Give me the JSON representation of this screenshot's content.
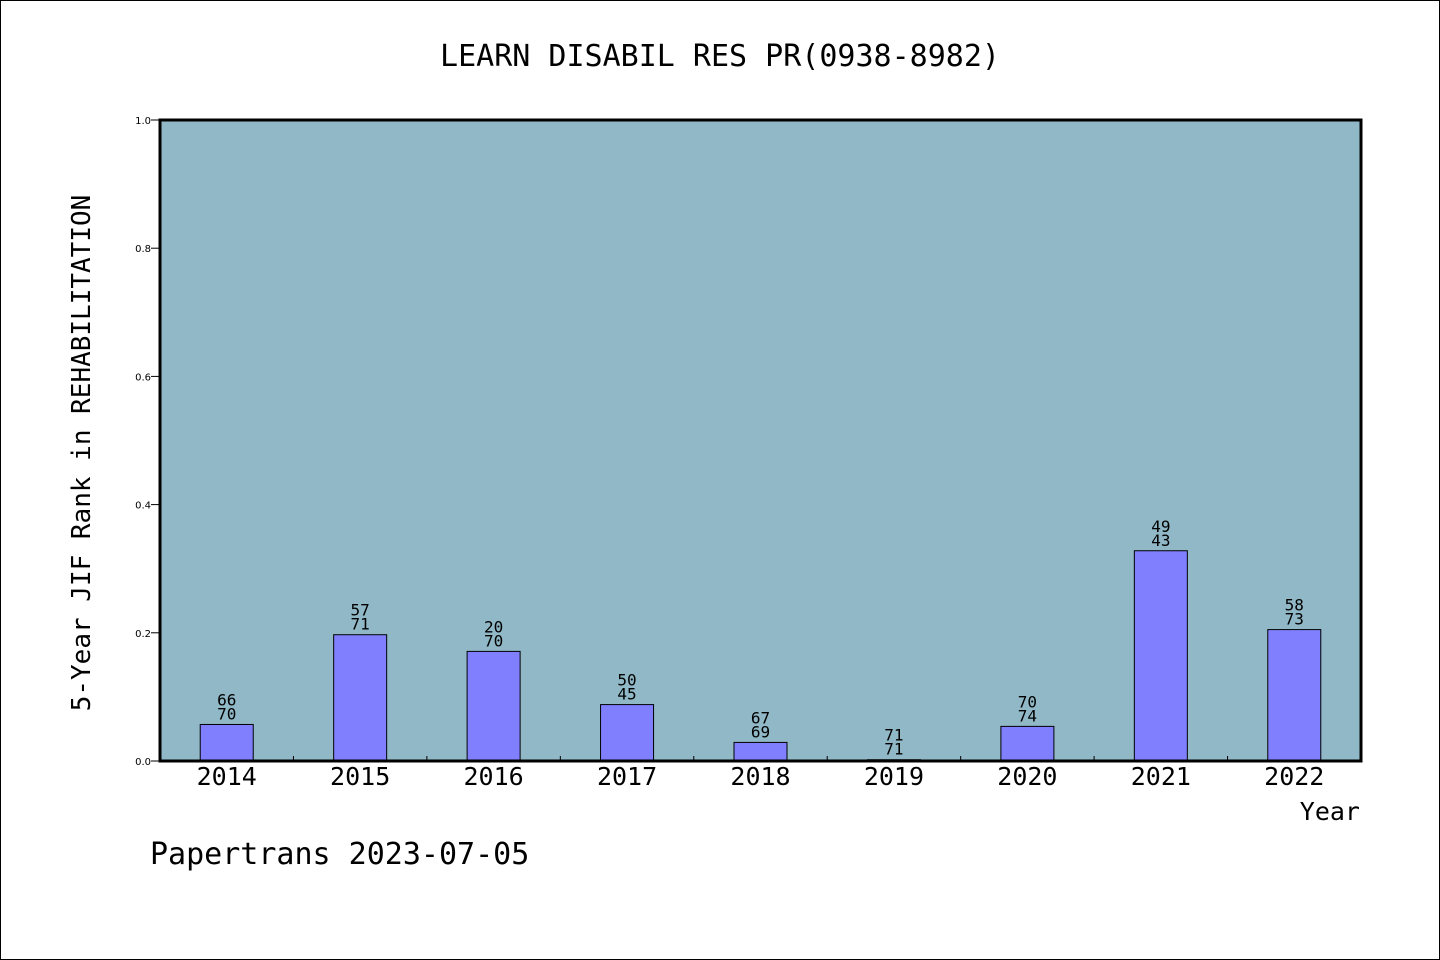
{
  "chart_data": {
    "type": "bar",
    "title": "LEARN DISABIL RES PR(0938-8982)",
    "xlabel": "Year",
    "ylabel": "5-Year JIF Rank in REHABILITATION",
    "ylim": [
      0,
      1.0
    ],
    "yticks": [
      "0.0",
      "0.2",
      "0.4",
      "0.6",
      "0.8",
      "1.0"
    ],
    "categories": [
      "2014",
      "2015",
      "2016",
      "2017",
      "2018",
      "2019",
      "2020",
      "2021",
      "2022"
    ],
    "values": [
      0.057,
      0.197,
      0.171,
      0.088,
      0.029,
      0.002,
      0.054,
      0.328,
      0.205
    ],
    "labels_top": [
      "66",
      "57",
      "20",
      "50",
      "67",
      "71",
      "70",
      "49",
      "58"
    ],
    "labels_bottom": [
      "70",
      "71",
      "70",
      "45",
      "69",
      "71",
      "74",
      "43",
      "73"
    ],
    "grid": false,
    "legend": "none",
    "colors": {
      "plot_background": "#90b8c6",
      "bar_fill": "#8080ff",
      "bar_stroke": "#000000"
    }
  },
  "footer": "Papertrans 2023-07-05"
}
